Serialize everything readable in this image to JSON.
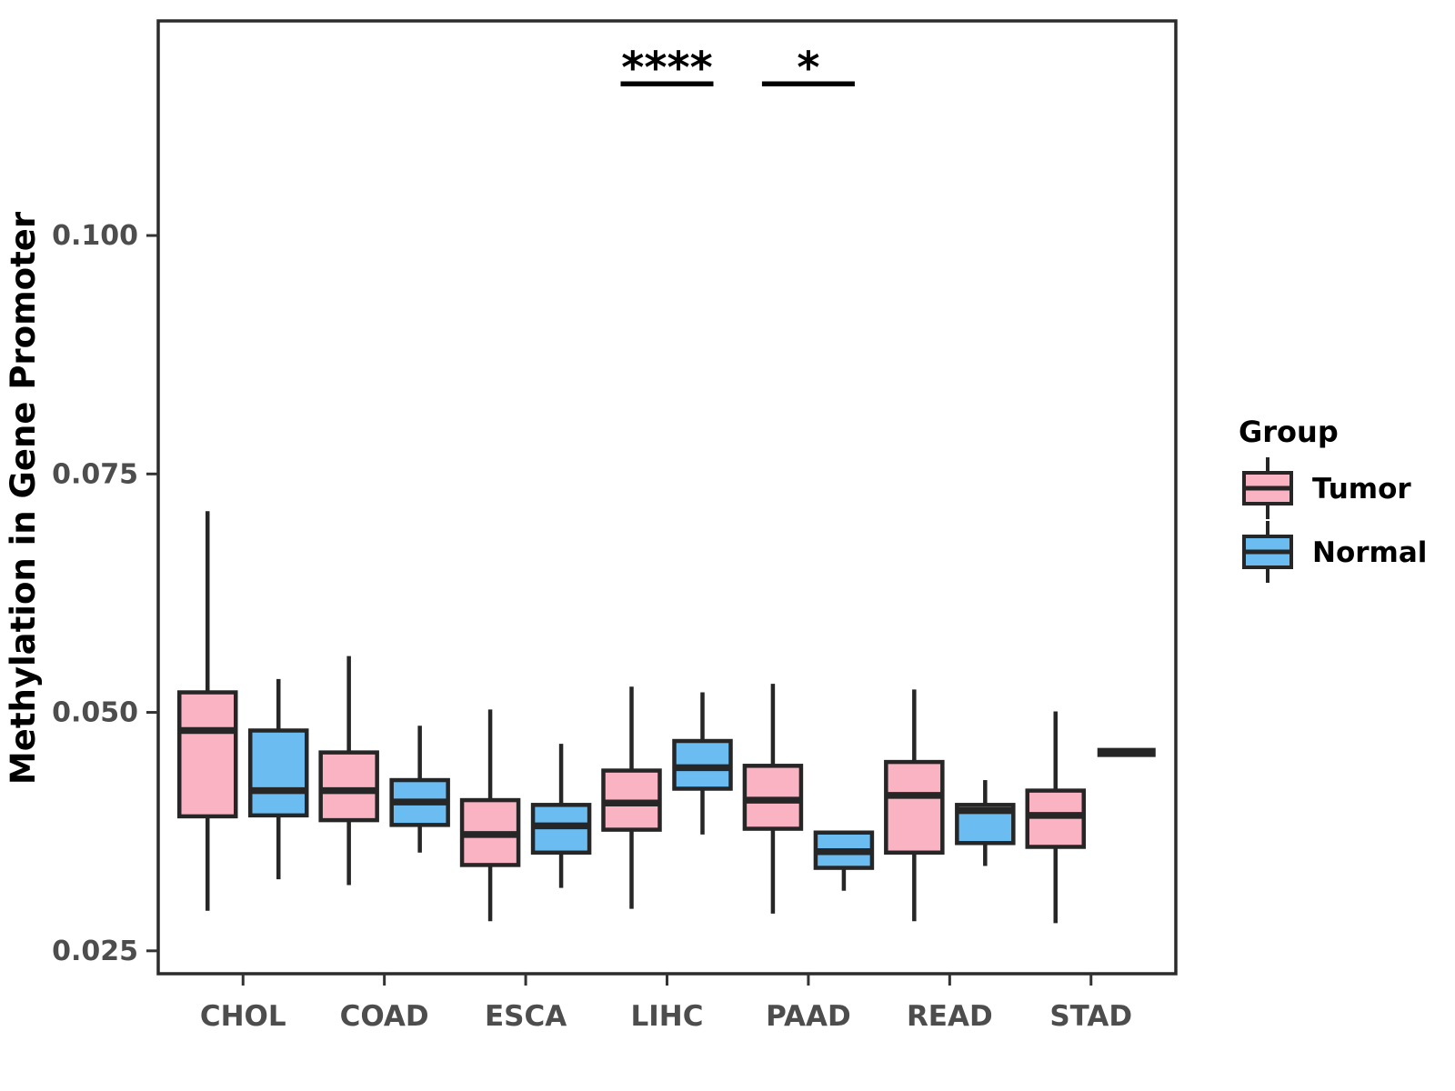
{
  "chart_data": {
    "type": "boxplot",
    "title": "",
    "xlabel": "",
    "ylabel": "Methylation in Gene Promoter",
    "categories": [
      "CHOL",
      "COAD",
      "ESCA",
      "LIHC",
      "PAAD",
      "READ",
      "STAD"
    ],
    "groups": [
      "Tumor",
      "Normal"
    ],
    "group_colors": {
      "Tumor": "#F9B3C3",
      "Normal": "#6BBCF1"
    },
    "box_border_color": "#262626",
    "axis_text_color": "#4D4D4D",
    "panel_border_color": "#2B2B2B",
    "grid": false,
    "legend": {
      "title": "Group",
      "position": "right",
      "items": [
        {
          "label": "Tumor",
          "color": "#F9B3C3"
        },
        {
          "label": "Normal",
          "color": "#6BBCF1"
        }
      ]
    },
    "ylim": [
      0.0226,
      0.1225
    ],
    "yticks": [
      {
        "value": 0.025,
        "label": "0.025"
      },
      {
        "value": 0.05,
        "label": "0.050"
      },
      {
        "value": 0.075,
        "label": "0.075"
      },
      {
        "value": 0.1,
        "label": "0.100"
      }
    ],
    "boxes": [
      {
        "category": "CHOL",
        "group": "Tumor",
        "low": 0.0292,
        "q1": 0.0391,
        "median": 0.0481,
        "q3": 0.0521,
        "high": 0.0711
      },
      {
        "category": "CHOL",
        "group": "Normal",
        "low": 0.0325,
        "q1": 0.0392,
        "median": 0.0418,
        "q3": 0.0481,
        "high": 0.0535
      },
      {
        "category": "COAD",
        "group": "Tumor",
        "low": 0.0319,
        "q1": 0.0387,
        "median": 0.0418,
        "q3": 0.0458,
        "high": 0.0559
      },
      {
        "category": "COAD",
        "group": "Normal",
        "low": 0.0353,
        "q1": 0.0382,
        "median": 0.0406,
        "q3": 0.0429,
        "high": 0.0486
      },
      {
        "category": "ESCA",
        "group": "Tumor",
        "low": 0.0281,
        "q1": 0.034,
        "median": 0.0372,
        "q3": 0.0408,
        "high": 0.0503
      },
      {
        "category": "ESCA",
        "group": "Normal",
        "low": 0.0316,
        "q1": 0.0353,
        "median": 0.0381,
        "q3": 0.0403,
        "high": 0.0467
      },
      {
        "category": "LIHC",
        "group": "Tumor",
        "low": 0.0294,
        "q1": 0.0377,
        "median": 0.0405,
        "q3": 0.0439,
        "high": 0.0527
      },
      {
        "category": "LIHC",
        "group": "Normal",
        "low": 0.0372,
        "q1": 0.042,
        "median": 0.0442,
        "q3": 0.047,
        "high": 0.0521
      },
      {
        "category": "PAAD",
        "group": "Tumor",
        "low": 0.0289,
        "q1": 0.0378,
        "median": 0.0408,
        "q3": 0.0444,
        "high": 0.053
      },
      {
        "category": "PAAD",
        "group": "Normal",
        "low": 0.0313,
        "q1": 0.0337,
        "median": 0.0354,
        "q3": 0.0374,
        "high": 0.0374
      },
      {
        "category": "READ",
        "group": "Tumor",
        "low": 0.0281,
        "q1": 0.0353,
        "median": 0.0413,
        "q3": 0.0448,
        "high": 0.0524
      },
      {
        "category": "READ",
        "group": "Normal",
        "low": 0.0339,
        "q1": 0.0363,
        "median": 0.0397,
        "q3": 0.0403,
        "high": 0.0429
      },
      {
        "category": "STAD",
        "group": "Tumor",
        "low": 0.0279,
        "q1": 0.0359,
        "median": 0.0392,
        "q3": 0.0418,
        "high": 0.0501
      },
      {
        "category": "STAD",
        "group": "Normal",
        "low": 0.0458,
        "q1": 0.0458,
        "median": 0.0458,
        "q3": 0.0458,
        "high": 0.0458
      }
    ],
    "annotations": [
      {
        "text": "****",
        "category": "LIHC",
        "line_value": 0.1159,
        "text_value": 0.1182
      },
      {
        "text": "*",
        "category": "PAAD",
        "line_value": 0.1159,
        "text_value": 0.1182
      }
    ]
  }
}
